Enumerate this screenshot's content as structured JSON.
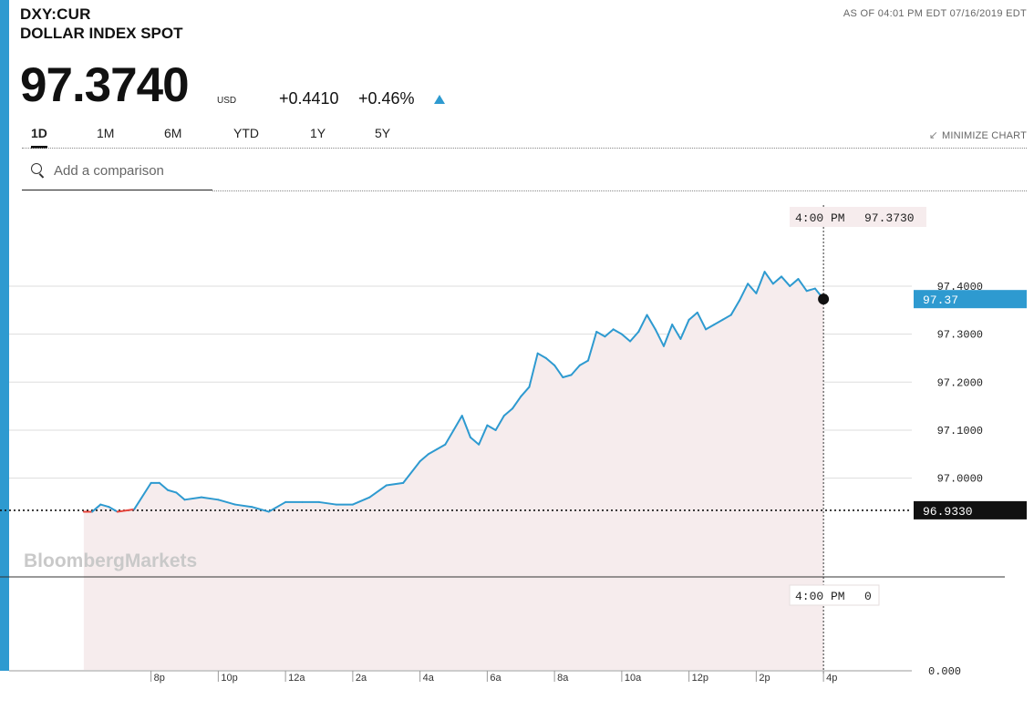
{
  "header": {
    "ticker": "DXY:CUR",
    "name": "DOLLAR INDEX SPOT",
    "as_of": "AS OF 04:01 PM EDT 07/16/2019 EDT",
    "price": "97.3740",
    "currency": "USD",
    "change": "+0.4410",
    "change_pct": "+0.46%",
    "direction": "up"
  },
  "range_tabs": [
    "1D",
    "1M",
    "6M",
    "YTD",
    "1Y",
    "5Y"
  ],
  "active_tab": "1D",
  "minimize_label": "MINIMIZE CHART",
  "search": {
    "placeholder": "Add a comparison"
  },
  "watermark": "BloombergMarkets",
  "colors": {
    "line": "#2e9ad0",
    "below_open": "#e8453c",
    "fill": "#f6eced",
    "accent": "#2e9ad0"
  },
  "chart_data": {
    "type": "line",
    "x_ticks": [
      "8p",
      "10p",
      "12a",
      "2a",
      "4a",
      "6a",
      "8a",
      "10a",
      "12p",
      "2p",
      "4p"
    ],
    "y_ticks": [
      "97.4000",
      "97.3000",
      "97.2000",
      "97.1000",
      "97.0000"
    ],
    "ylim": [
      96.91,
      97.455
    ],
    "xlim": [
      17.0,
      41.0
    ],
    "open_value": "96.9330",
    "open_level": 96.933,
    "last_value_label": "97.37",
    "last_value": 97.373,
    "crosshair": {
      "time": "4:00 PM",
      "value": "97.3730"
    },
    "volume_tooltip": {
      "time": "4:00 PM",
      "value": "0"
    },
    "volume_axis_label": "0.000",
    "series": [
      {
        "x": [
          18.0,
          18.25,
          18.5,
          18.75,
          19.0,
          19.5,
          20.0,
          20.25,
          20.5,
          20.75,
          21.0,
          21.5,
          22.0,
          22.5,
          23.0,
          23.5,
          24.0,
          24.5,
          25.0,
          25.5,
          26.0,
          26.5,
          27.0,
          27.5,
          28.0,
          28.25,
          28.5,
          28.75,
          29.0,
          29.25,
          29.5,
          29.75,
          30.0,
          30.25,
          30.5,
          30.75,
          31.0,
          31.25,
          31.5,
          31.75,
          32.0,
          32.25,
          32.5,
          32.75,
          33.0,
          33.25,
          33.5,
          33.75,
          34.0,
          34.25,
          34.5,
          34.75,
          35.0,
          35.25,
          35.5,
          35.75,
          36.0,
          36.25,
          36.5,
          36.75,
          37.0,
          37.25,
          37.5,
          37.75,
          38.0,
          38.25,
          38.5,
          38.75,
          39.0,
          39.25,
          39.5,
          39.75,
          40.0
        ],
        "y": [
          96.93,
          96.93,
          96.945,
          96.94,
          96.93,
          96.935,
          96.99,
          96.99,
          96.975,
          96.97,
          96.955,
          96.96,
          96.955,
          96.945,
          96.94,
          96.93,
          96.95,
          96.95,
          96.95,
          96.945,
          96.945,
          96.96,
          96.985,
          96.99,
          97.035,
          97.05,
          97.06,
          97.07,
          97.1,
          97.13,
          97.085,
          97.07,
          97.11,
          97.1,
          97.13,
          97.145,
          97.17,
          97.19,
          97.26,
          97.25,
          97.235,
          97.21,
          97.215,
          97.235,
          97.245,
          97.305,
          97.295,
          97.31,
          97.3,
          97.285,
          97.305,
          97.34,
          97.31,
          97.275,
          97.32,
          97.29,
          97.33,
          97.345,
          97.31,
          97.32,
          97.33,
          97.34,
          97.37,
          97.405,
          97.385,
          97.43,
          97.405,
          97.42,
          97.4,
          97.415,
          97.39,
          97.395,
          97.373
        ]
      }
    ]
  }
}
